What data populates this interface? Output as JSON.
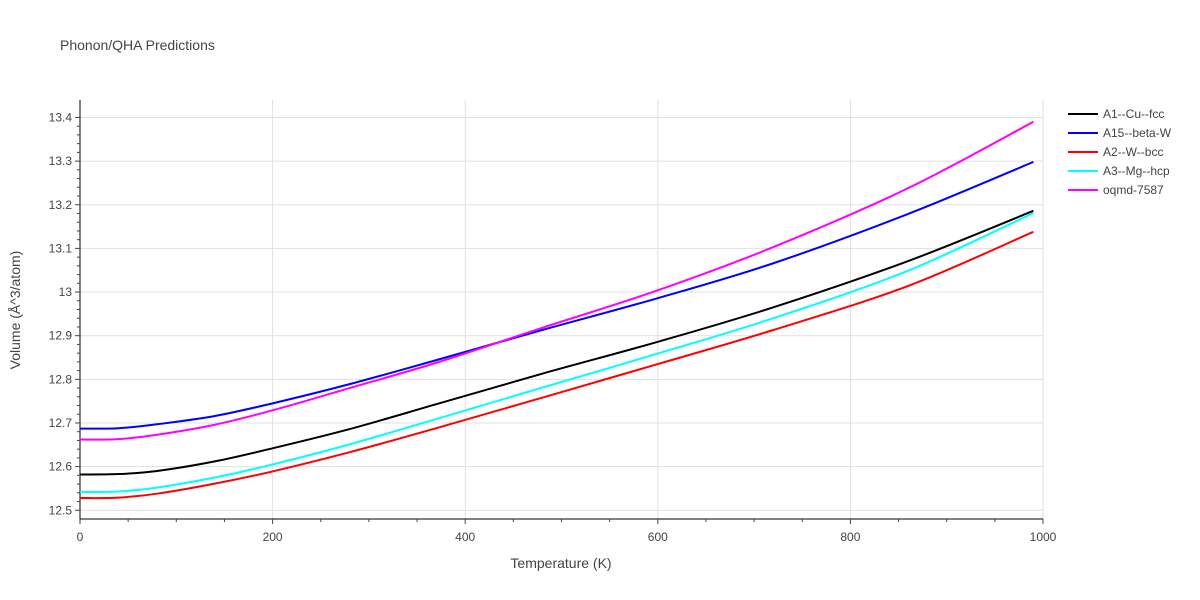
{
  "chart_data": {
    "type": "line",
    "title": "Phonon/QHA Predictions",
    "xlabel": "Temperature (K)",
    "ylabel": "Volume (Å^3/atom)",
    "xlim": [
      0,
      1000
    ],
    "ylim": [
      12.48,
      13.44
    ],
    "x_ticks": [
      0,
      200,
      400,
      600,
      800,
      1000
    ],
    "x_tick_labels": [
      "0",
      "200",
      "400",
      "600",
      "800",
      "1000"
    ],
    "y_ticks": [
      12.5,
      12.6,
      12.7,
      12.8,
      12.9,
      13.0,
      13.1,
      13.2,
      13.3,
      13.4
    ],
    "y_tick_labels": [
      "12.5",
      "12.6",
      "12.7",
      "12.8",
      "12.9",
      "13",
      "13.1",
      "13.2",
      "13.3",
      "13.4"
    ],
    "grid": true,
    "legend_position": "top-right",
    "series": [
      {
        "name": "A1--Cu--fcc",
        "color": "#000000",
        "x": [
          0,
          40,
          80,
          140,
          200,
          280,
          370,
          480,
          600,
          720,
          860,
          990
        ],
        "y": [
          12.582,
          12.583,
          12.59,
          12.612,
          12.642,
          12.686,
          12.743,
          12.813,
          12.886,
          12.965,
          13.071,
          13.186
        ]
      },
      {
        "name": "A15--beta-W",
        "color": "#0000ff",
        "x": [
          0,
          40,
          80,
          140,
          200,
          280,
          370,
          480,
          600,
          720,
          860,
          990
        ],
        "y": [
          12.687,
          12.688,
          12.697,
          12.716,
          12.745,
          12.789,
          12.844,
          12.913,
          12.986,
          13.066,
          13.179,
          13.298
        ]
      },
      {
        "name": "A2--W--bcc",
        "color": "#ff0000",
        "x": [
          0,
          40,
          80,
          140,
          200,
          280,
          370,
          480,
          600,
          720,
          860,
          990
        ],
        "y": [
          12.528,
          12.529,
          12.538,
          12.561,
          12.589,
          12.633,
          12.688,
          12.758,
          12.835,
          12.913,
          13.014,
          13.138
        ]
      },
      {
        "name": "A3--Mg--hcp",
        "color": "#00ffff",
        "x": [
          0,
          40,
          80,
          140,
          200,
          280,
          370,
          480,
          600,
          720,
          860,
          990
        ],
        "y": [
          12.542,
          12.543,
          12.552,
          12.575,
          12.605,
          12.651,
          12.709,
          12.781,
          12.859,
          12.94,
          13.049,
          13.181
        ]
      },
      {
        "name": "oqmd-7587",
        "color": "#ff00ff",
        "x": [
          0,
          40,
          80,
          140,
          200,
          280,
          370,
          480,
          600,
          720,
          860,
          990
        ],
        "y": [
          12.662,
          12.663,
          12.673,
          12.696,
          12.729,
          12.78,
          12.838,
          12.918,
          13.004,
          13.103,
          13.238,
          13.39
        ]
      }
    ]
  }
}
